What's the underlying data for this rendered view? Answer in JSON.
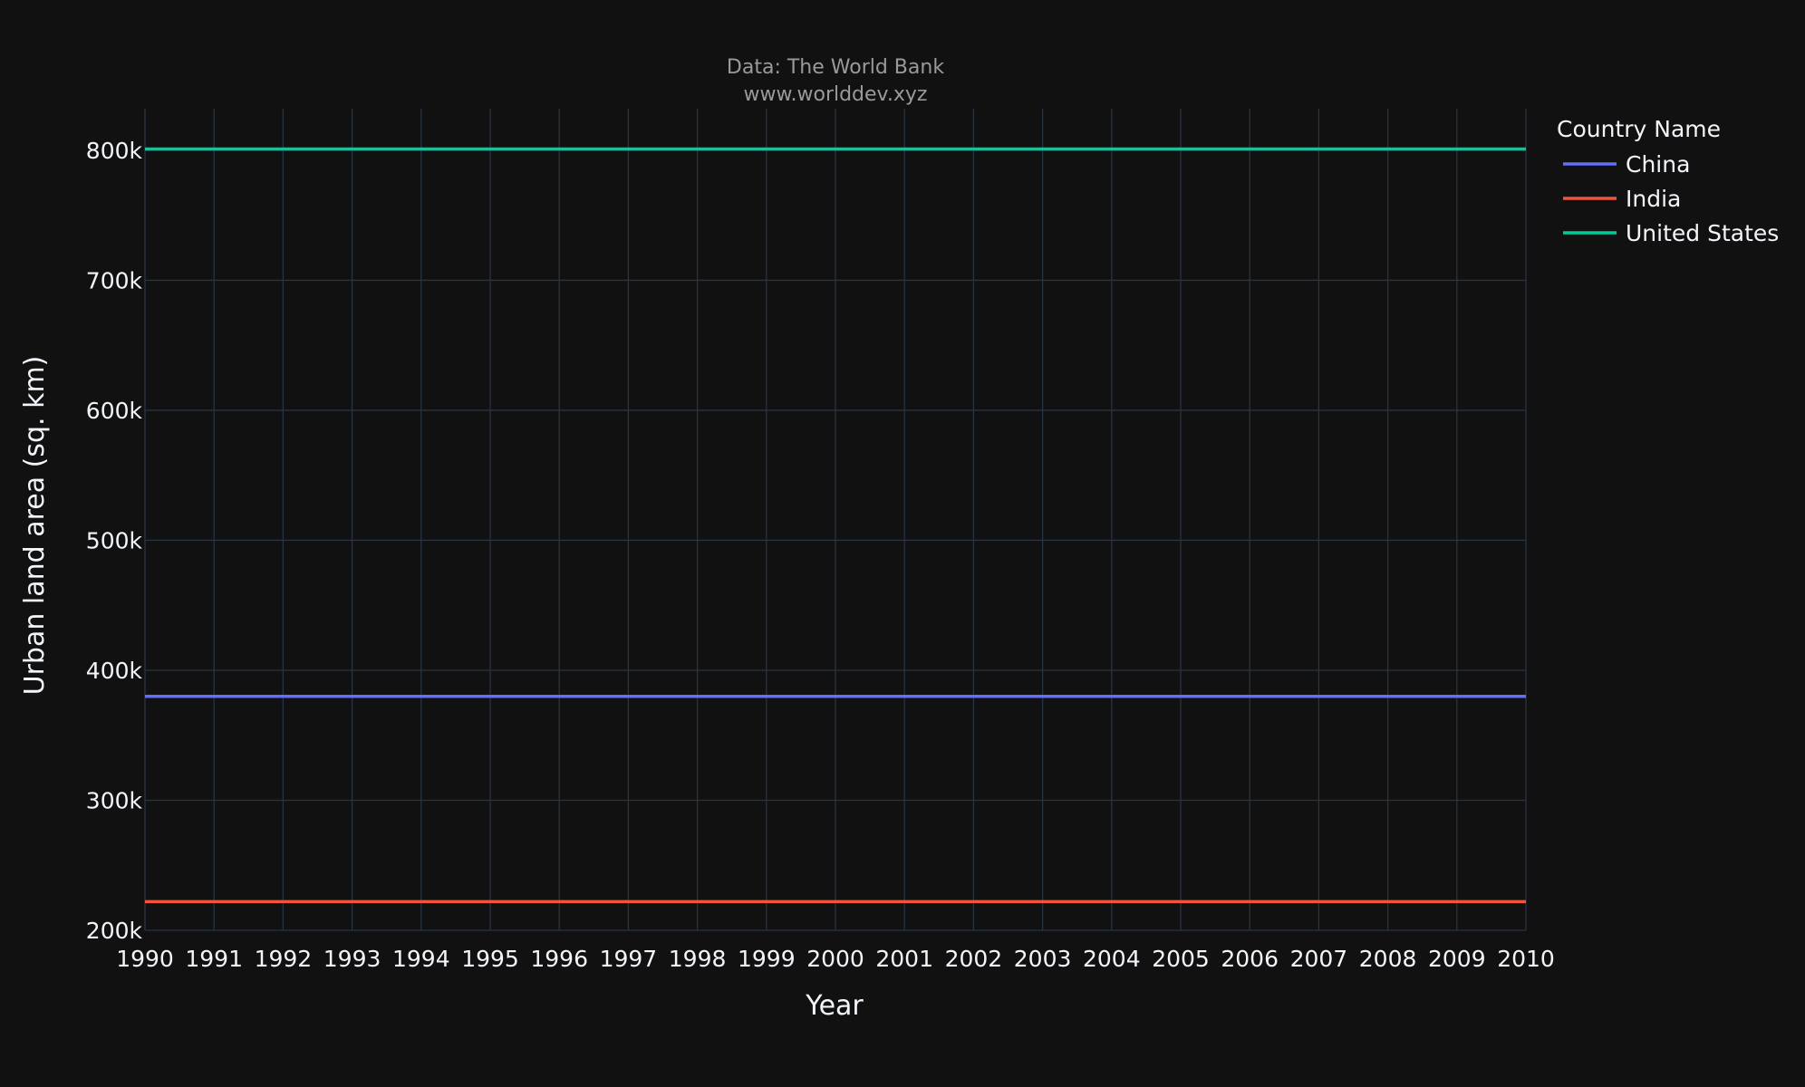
{
  "chart_data": {
    "type": "line",
    "title": "",
    "subtitle_lines": [
      "Data: The World Bank",
      "www.worlddev.xyz"
    ],
    "xlabel": "Year",
    "ylabel": "Urban land area (sq. km)",
    "x": [
      1990,
      1991,
      1992,
      1993,
      1994,
      1995,
      1996,
      1997,
      1998,
      1999,
      2000,
      2001,
      2002,
      2003,
      2004,
      2005,
      2006,
      2007,
      2008,
      2009,
      2010
    ],
    "x_ticks": [
      "1990",
      "1991",
      "1992",
      "1993",
      "1994",
      "1995",
      "1996",
      "1997",
      "1998",
      "1999",
      "2000",
      "2001",
      "2002",
      "2003",
      "2004",
      "2005",
      "2006",
      "2007",
      "2008",
      "2009",
      "2010"
    ],
    "xlim": [
      1990,
      2010
    ],
    "y_ticks": [
      {
        "value": 200000,
        "label": "200k"
      },
      {
        "value": 300000,
        "label": "300k"
      },
      {
        "value": 400000,
        "label": "400k"
      },
      {
        "value": 500000,
        "label": "500k"
      },
      {
        "value": 600000,
        "label": "600k"
      },
      {
        "value": 700000,
        "label": "700k"
      },
      {
        "value": 800000,
        "label": "800k"
      }
    ],
    "ylim": [
      200000,
      832000
    ],
    "grid": true,
    "legend_title": "Country Name",
    "legend_position": "top-right outside",
    "series": [
      {
        "name": "China",
        "color": "#636efa",
        "values": [
          380000,
          380000,
          380000,
          380000,
          380000,
          380000,
          380000,
          380000,
          380000,
          380000,
          380000,
          380000,
          380000,
          380000,
          380000,
          380000,
          380000,
          380000,
          380000,
          380000,
          380000
        ]
      },
      {
        "name": "India",
        "color": "#ef553b",
        "values": [
          222000,
          222000,
          222000,
          222000,
          222000,
          222000,
          222000,
          222000,
          222000,
          222000,
          222000,
          222000,
          222000,
          222000,
          222000,
          222000,
          222000,
          222000,
          222000,
          222000,
          222000
        ]
      },
      {
        "name": "United States",
        "color": "#00cc96",
        "values": [
          801000,
          801000,
          801000,
          801000,
          801000,
          801000,
          801000,
          801000,
          801000,
          801000,
          801000,
          801000,
          801000,
          801000,
          801000,
          801000,
          801000,
          801000,
          801000,
          801000,
          801000
        ]
      }
    ]
  }
}
